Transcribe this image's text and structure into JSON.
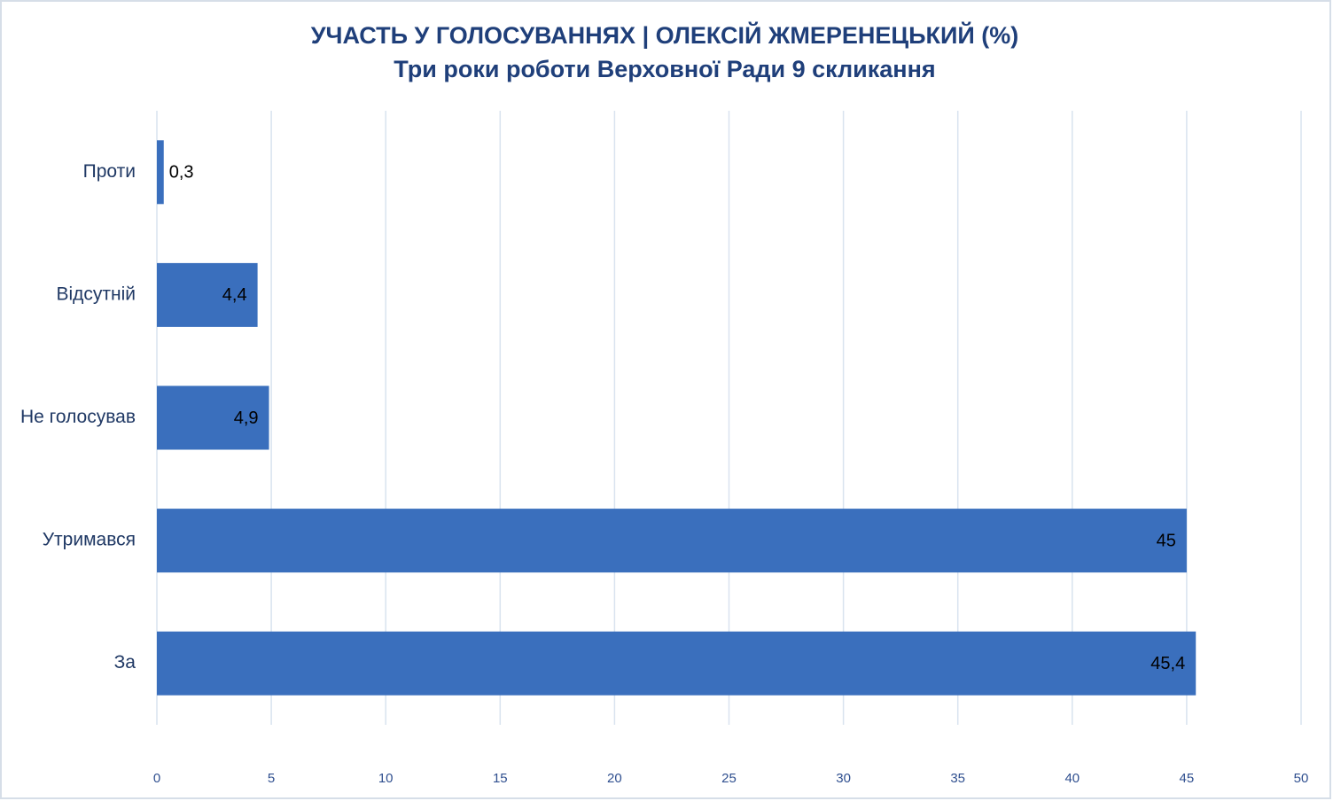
{
  "chart_data": {
    "type": "hbar",
    "title": "УЧАСТЬ У ГОЛОСУВАННЯХ  | ОЛЕКСІЙ ЖМЕРЕНЕЦЬКИЙ (%)",
    "subtitle": "Три роки роботи Верховної Ради 9 скликання",
    "categories": [
      "Проти",
      "Відсутній",
      "Не голосував",
      "Утримався",
      "За"
    ],
    "values": [
      0.3,
      4.4,
      4.9,
      45,
      45.4
    ],
    "value_labels": [
      "0,3",
      "4,4",
      "4,9",
      "45",
      "45,4"
    ],
    "color": "#3a6fbd",
    "xlim": [
      0,
      50
    ],
    "xticks": [
      0,
      5,
      10,
      15,
      20,
      25,
      30,
      35,
      40,
      45,
      50
    ],
    "grid": true
  }
}
